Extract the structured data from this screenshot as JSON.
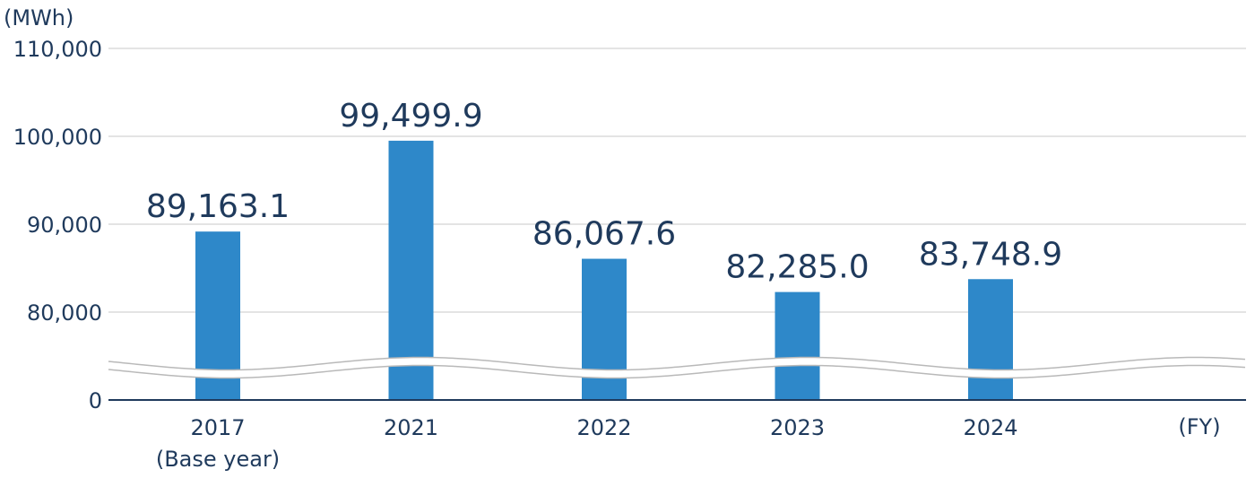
{
  "chart_data": {
    "type": "bar",
    "ylabel": "(MWh)",
    "xlabel": "(FY)",
    "categories": [
      "2017",
      "2021",
      "2022",
      "2023",
      "2024"
    ],
    "category_sublabels": [
      "(Base year)",
      "",
      "",
      "",
      ""
    ],
    "values": [
      89163.1,
      99499.9,
      86067.6,
      82285.0,
      83748.9
    ],
    "value_labels": [
      "89,163.1",
      "99,499.9",
      "86,067.6",
      "82,285.0",
      "83,748.9"
    ],
    "y_ticks": [
      {
        "value": 0,
        "label": "0"
      },
      {
        "value": 80000,
        "label": "80,000"
      },
      {
        "value": 90000,
        "label": "90,000"
      },
      {
        "value": 100000,
        "label": "100,000"
      },
      {
        "value": 110000,
        "label": "110,000"
      }
    ],
    "ylim": [
      0,
      110000
    ],
    "axis_break": {
      "from": 0,
      "to": 80000
    },
    "bar_color": "#2e88c9",
    "grid": true,
    "legend": "none"
  }
}
